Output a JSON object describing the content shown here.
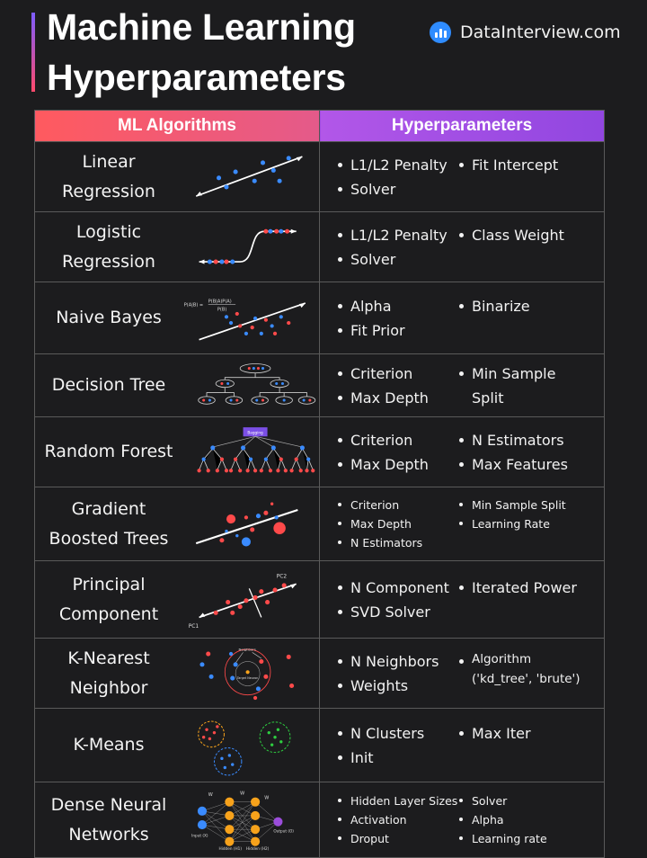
{
  "title": {
    "line1": "Machine Learning",
    "line2": "Hyperparameters"
  },
  "brand": {
    "name": "DataInterview.com",
    "icon": "bar-chart-icon"
  },
  "table": {
    "headers": {
      "algorithms": "ML Algorithms",
      "hyperparameters": "Hyperparameters"
    },
    "rows": [
      {
        "name": "Linear\nRegression",
        "col1": [
          "L1/L2 Penalty",
          "Solver"
        ],
        "col2": [
          "Fit Intercept"
        ]
      },
      {
        "name": "Logistic\nRegression",
        "col1": [
          "L1/L2 Penalty",
          "Solver"
        ],
        "col2": [
          "Class Weight"
        ]
      },
      {
        "name": "Naive Bayes",
        "col1": [
          "Alpha",
          "Fit Prior"
        ],
        "col2": [
          "Binarize"
        ],
        "formula_lhs": "P(A|B) =",
        "formula_num": "P(B|A)P(A)",
        "formula_den": "P(B)"
      },
      {
        "name": "Decision Tree",
        "col1": [
          "Criterion",
          "Max Depth"
        ],
        "col2": [
          "Min Sample\nSplit"
        ]
      },
      {
        "name": "Random Forest",
        "col1": [
          "Criterion",
          "Max Depth"
        ],
        "col2": [
          "N Estimators",
          "Max Features"
        ],
        "tag": "Bagging"
      },
      {
        "name": "Gradient\nBoosted Trees",
        "col1": [
          "Criterion",
          "Max Depth",
          "N Estimators"
        ],
        "col2": [
          "Min Sample Split",
          "Learning Rate"
        ]
      },
      {
        "name": "Principal\nComponent",
        "col1": [
          "N Component",
          "SVD Solver"
        ],
        "col2": [
          "Iterated Power"
        ],
        "pc1": "PC1",
        "pc2": "PC2"
      },
      {
        "name": "K-Nearest\nNeighbor",
        "col1": [
          "N Neighbors",
          "Weights"
        ],
        "col2": [
          "Algorithm\n('kd_tree', 'brute')"
        ],
        "neighbors": "Neighbors",
        "target": "Target\nNeuron"
      },
      {
        "name": "K-Means",
        "col1": [
          "N Clusters",
          "Init"
        ],
        "col2": [
          "Max Iter"
        ]
      },
      {
        "name": "Dense Neural\nNetworks",
        "col1": [
          "Hidden Layer Sizes",
          "Activation",
          "Droput"
        ],
        "col2": [
          "Solver",
          "Alpha",
          "Learning rate"
        ],
        "input": "Input (X)",
        "output": "Output (O)",
        "h1": "Hidden (H1)",
        "h2": "Hidden (H2)",
        "w": "W"
      }
    ]
  },
  "colors": {
    "red": "#ff4a4a",
    "blue": "#3a8bff",
    "purple": "#9b4ddb",
    "orange": "#f7a21b",
    "green": "#2ecc40"
  }
}
